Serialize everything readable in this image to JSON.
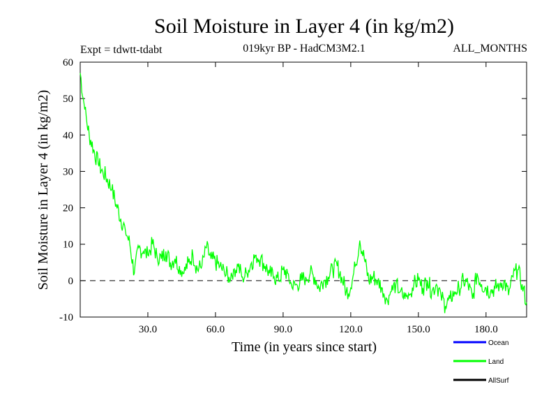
{
  "chart_data": {
    "type": "line",
    "title": "Soil Moisture in Layer 4 (in kg/m2)",
    "subtitle_left": "Expt = tdwtt-tdabt",
    "subtitle_center": "019kyr BP - HadCM3M2.1",
    "subtitle_right": "ALL_MONTHS",
    "xlabel": "Time (in years since start)",
    "ylabel": "Soil Moisture in Layer 4 (in kg/m2)",
    "xlim": [
      0,
      198
    ],
    "ylim": [
      -10,
      60
    ],
    "x_ticks": [
      30,
      60,
      90,
      120,
      150,
      180
    ],
    "x_tick_labels": [
      "30.0",
      "60.0",
      "90.0",
      "120.0",
      "150.0",
      "180.0"
    ],
    "y_ticks": [
      -10,
      0,
      10,
      20,
      30,
      40,
      50,
      60
    ],
    "y_tick_labels": [
      "-10",
      "0",
      "10",
      "20",
      "30",
      "40",
      "50",
      "60"
    ],
    "zero_line": 0,
    "colors": {
      "Ocean": "#0000ff",
      "Land": "#00ff00",
      "AllSurf": "#000000"
    },
    "legend": [
      "Ocean",
      "Land",
      "AllSurf"
    ],
    "series": [
      {
        "name": "Land",
        "x": [
          0,
          2,
          4,
          6,
          8,
          10,
          12,
          14,
          16,
          18,
          20,
          22,
          24,
          26,
          28,
          30,
          32,
          34,
          36,
          38,
          40,
          42,
          44,
          46,
          48,
          50,
          52,
          54,
          56,
          58,
          60,
          62,
          64,
          66,
          68,
          70,
          72,
          74,
          76,
          78,
          80,
          82,
          84,
          86,
          88,
          90,
          92,
          94,
          96,
          98,
          100,
          102,
          104,
          106,
          108,
          110,
          112,
          114,
          116,
          118,
          120,
          122,
          124,
          126,
          128,
          130,
          132,
          134,
          136,
          138,
          140,
          142,
          144,
          146,
          148,
          150,
          152,
          154,
          156,
          158,
          160,
          162,
          164,
          166,
          168,
          170,
          172,
          174,
          176,
          178,
          180,
          182,
          184,
          186,
          188,
          190,
          192,
          194,
          196,
          198
        ],
        "values": [
          57,
          47,
          40,
          36,
          32,
          30,
          28,
          25,
          21,
          17,
          14,
          10,
          2,
          9,
          8,
          7,
          10,
          7,
          6,
          8,
          5,
          6,
          4,
          2,
          5,
          7,
          3,
          4,
          9,
          6,
          5,
          4,
          2,
          1,
          3,
          4,
          1,
          2,
          5,
          7,
          6,
          4,
          2,
          1,
          0,
          3,
          2,
          -2,
          -1,
          0,
          1,
          2,
          1,
          -2,
          0,
          1,
          3,
          4,
          1,
          -3,
          -2,
          4,
          11,
          6,
          0,
          1,
          0,
          -2,
          -5,
          -3,
          -1,
          -3,
          -5,
          -4,
          -1,
          0,
          -2,
          0,
          -3,
          -1,
          -4,
          -7,
          -5,
          -3,
          -2,
          0,
          -1,
          -5,
          2,
          -1,
          -2,
          -3,
          -2,
          -1,
          0,
          -4,
          1,
          3,
          -1,
          -6
        ]
      }
    ]
  }
}
